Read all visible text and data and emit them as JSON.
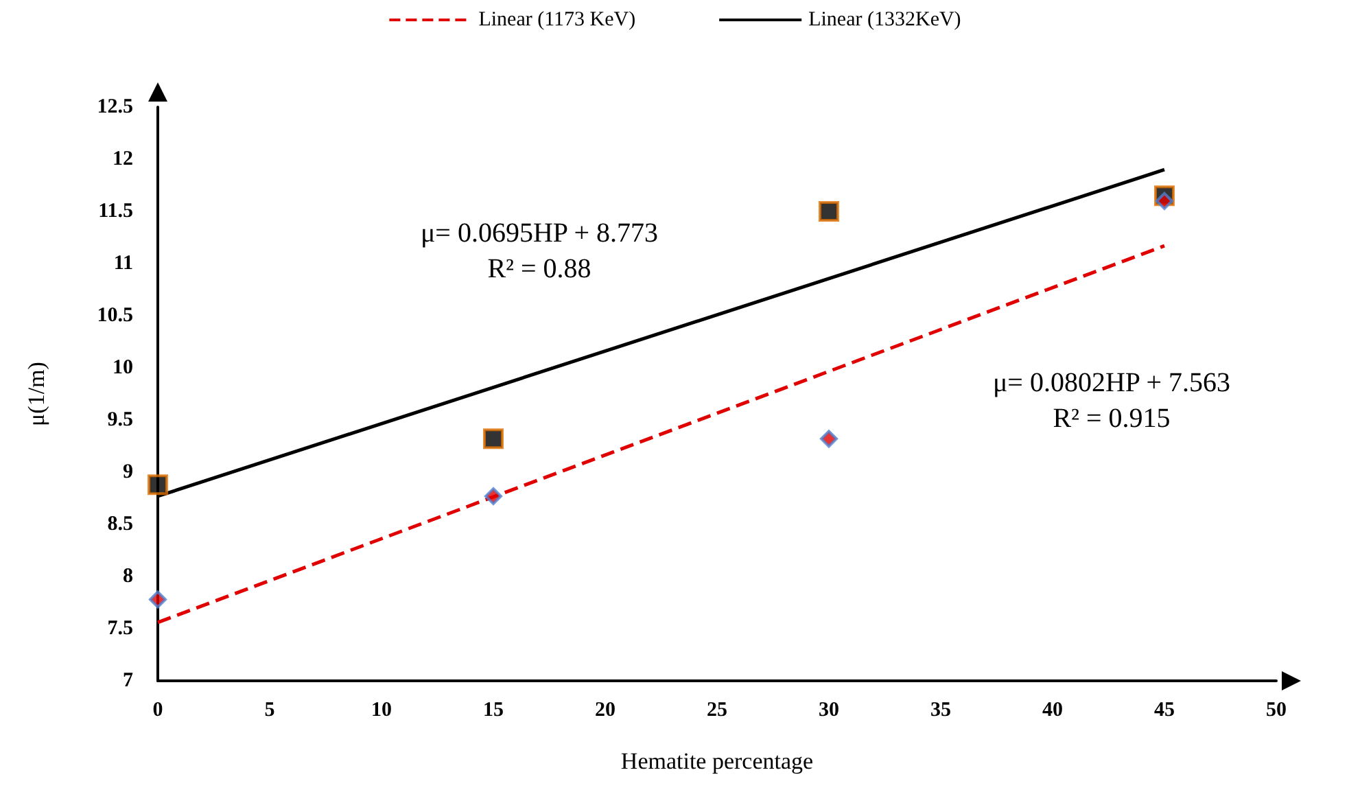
{
  "chart_data": {
    "type": "scatter",
    "xlabel": "Hematite percentage",
    "ylabel": "μ(1/m)",
    "xlim": [
      0,
      50
    ],
    "xticks": [
      0,
      5,
      10,
      15,
      20,
      25,
      30,
      35,
      40,
      45,
      50
    ],
    "ylim": [
      7,
      12.5
    ],
    "yticks": [
      7,
      7.5,
      8,
      8.5,
      9,
      9.5,
      10,
      10.5,
      11,
      11.5,
      12,
      12.5
    ],
    "grid": false,
    "legend": "top",
    "series": [
      {
        "marker": "square",
        "color": "#000000",
        "x": [
          0,
          15,
          30,
          45
        ],
        "values": [
          8.88,
          9.32,
          11.5,
          11.65
        ]
      },
      {
        "marker": "diamond",
        "color": "#e00000",
        "x": [
          0,
          15,
          30,
          45
        ],
        "values": [
          7.78,
          8.77,
          9.32,
          11.6
        ]
      },
      {
        "type": "line",
        "name": "Linear (1173 KeV)",
        "color": "#e00000",
        "line_style": "dashed",
        "marker": "none",
        "x": [
          0,
          45
        ],
        "values": [
          7.56,
          11.17
        ]
      },
      {
        "type": "line",
        "name": "Linear (1332KeV)",
        "color": "#000000",
        "line_style": "solid",
        "marker": "none",
        "x": [
          0,
          45
        ],
        "values": [
          8.77,
          11.9
        ]
      }
    ],
    "annotations": [
      "μ= 0.0695HP + 8.773\nR² = 0.88",
      "μ= 0.0802HP + 7.563\nR² = 0.915"
    ]
  }
}
